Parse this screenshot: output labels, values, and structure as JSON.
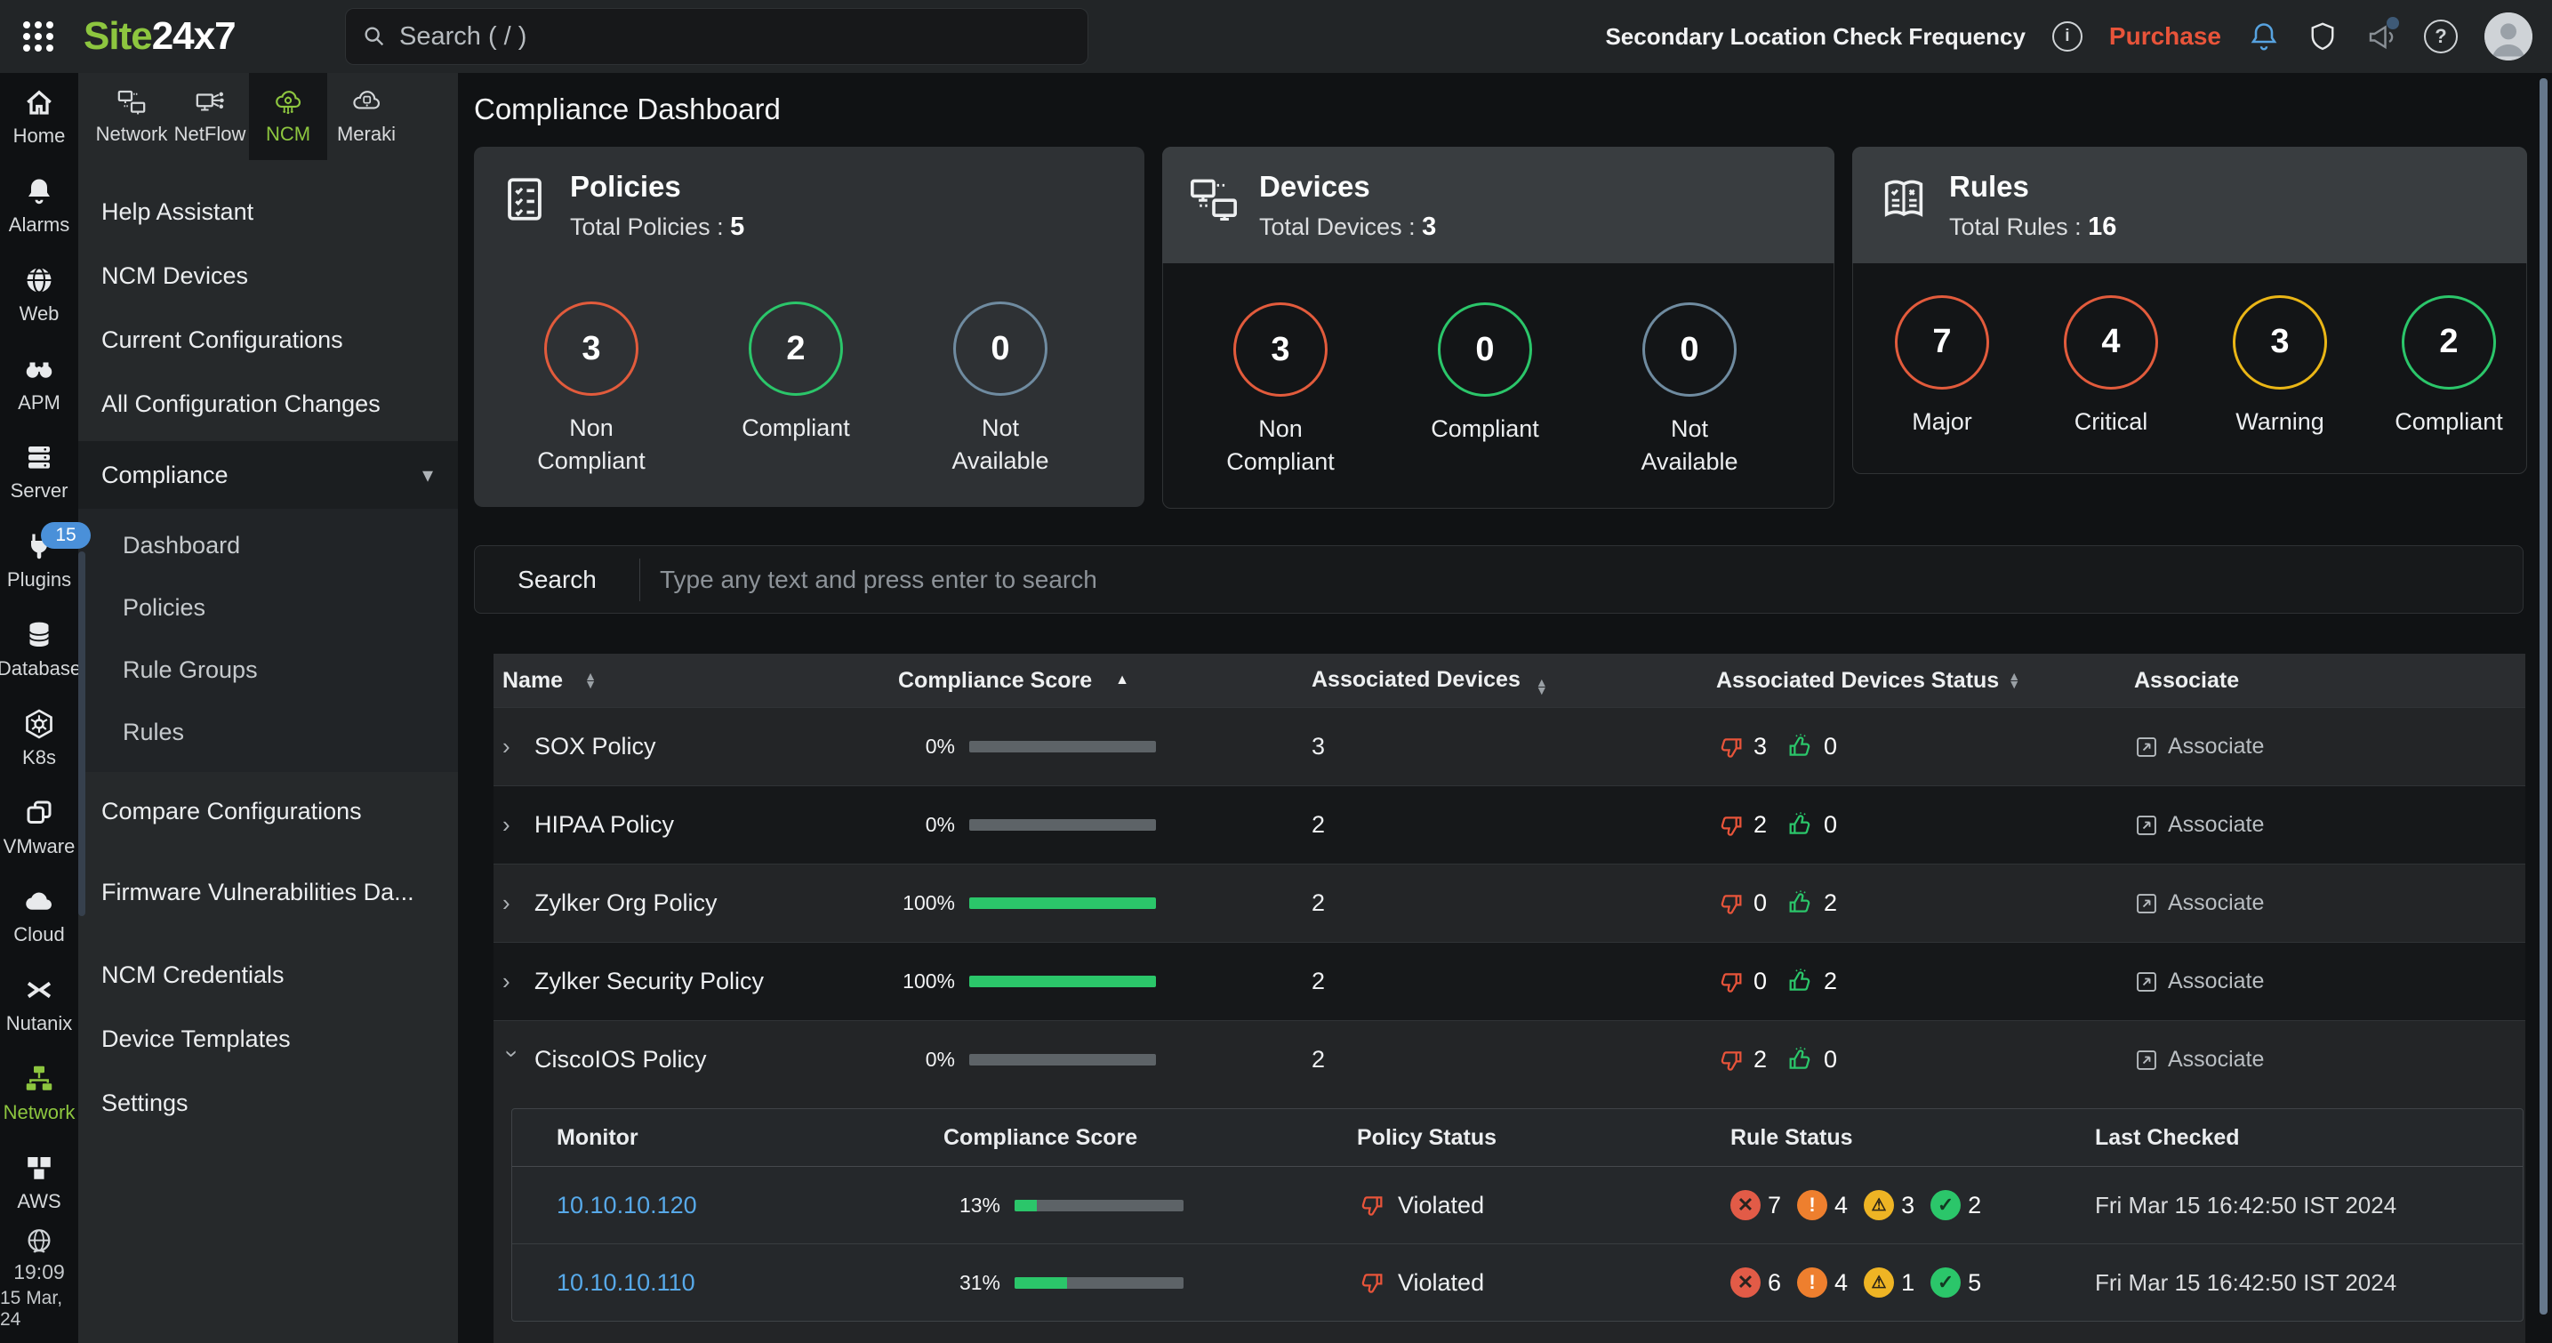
{
  "topbar": {
    "logo_site": "Site",
    "logo_24x7": "24x7",
    "search_placeholder": "Search ( / )",
    "check_frequency_label": "Secondary Location Check Frequency",
    "purchase_label": "Purchase"
  },
  "glyphs": {
    "sort_up": "▲",
    "sort_down": "▼",
    "chevron": "›",
    "caret_down": "▾",
    "info": "i",
    "question": "?",
    "cross": "✕",
    "exclaim": "!",
    "warning": "⚠",
    "check": "✓",
    "meraki_m": "M"
  },
  "rail": {
    "items": [
      {
        "label": "Home"
      },
      {
        "label": "Alarms"
      },
      {
        "label": "Web"
      },
      {
        "label": "APM"
      },
      {
        "label": "Server"
      },
      {
        "label": "Plugins",
        "badge": "15"
      },
      {
        "label": "Database"
      },
      {
        "label": "K8s"
      },
      {
        "label": "VMware"
      },
      {
        "label": "Cloud"
      },
      {
        "label": "Nutanix"
      },
      {
        "label": "Network",
        "active": true
      },
      {
        "label": "AWS"
      }
    ],
    "time": "19:09",
    "date": "15 Mar, 24"
  },
  "tabs": [
    {
      "label": "Network"
    },
    {
      "label": "NetFlow"
    },
    {
      "label": "NCM",
      "active": true
    },
    {
      "label": "Meraki"
    }
  ],
  "sidebar": {
    "items": [
      {
        "label": "Help Assistant"
      },
      {
        "label": "NCM Devices"
      },
      {
        "label": "Current Configurations"
      },
      {
        "label": "All Configuration Changes"
      },
      {
        "label": "Compliance"
      },
      {
        "label": "Dashboard"
      },
      {
        "label": "Policies"
      },
      {
        "label": "Rule Groups"
      },
      {
        "label": "Rules"
      },
      {
        "label": "Compare Configurations"
      },
      {
        "label": "Firmware Vulnerabilities Da..."
      },
      {
        "label": "NCM Credentials"
      },
      {
        "label": "Device Templates"
      },
      {
        "label": "Settings"
      }
    ]
  },
  "page": {
    "title": "Compliance Dashboard"
  },
  "cards": {
    "policies": {
      "title": "Policies",
      "total_label": "Total Policies :",
      "total": "5",
      "stats": [
        {
          "value": "3",
          "label": "Non Compliant",
          "color": "#e25b3c"
        },
        {
          "value": "2",
          "label": "Compliant",
          "color": "#2bc66a"
        },
        {
          "value": "0",
          "label": "Not Available",
          "color": "#6f8ba0"
        }
      ]
    },
    "devices": {
      "title": "Devices",
      "total_label": "Total Devices :",
      "total": "3",
      "stats": [
        {
          "value": "3",
          "label": "Non Compliant",
          "color": "#e25b3c"
        },
        {
          "value": "0",
          "label": "Compliant",
          "color": "#2bc66a"
        },
        {
          "value": "0",
          "label": "Not Available",
          "color": "#6f8ba0"
        }
      ]
    },
    "rules": {
      "title": "Rules",
      "total_label": "Total Rules :",
      "total": "16",
      "stats": [
        {
          "value": "7",
          "label": "Major",
          "color": "#e25b3c"
        },
        {
          "value": "4",
          "label": "Critical",
          "color": "#e25b3c"
        },
        {
          "value": "3",
          "label": "Warning",
          "color": "#eab616"
        },
        {
          "value": "2",
          "label": "Compliant",
          "color": "#2bc66a"
        }
      ]
    }
  },
  "search": {
    "label": "Search",
    "placeholder": "Type any text and press enter to search"
  },
  "table": {
    "columns": [
      {
        "label": "Name"
      },
      {
        "label": "Compliance Score"
      },
      {
        "label": "Associated Devices"
      },
      {
        "label": "Associated Devices Status"
      },
      {
        "label": "Associate"
      }
    ],
    "rows": [
      {
        "name": "SOX Policy",
        "score": "0%",
        "score_pct": 0,
        "devices": "3",
        "violated": "3",
        "compliant": "0",
        "associate_label": "Associate"
      },
      {
        "name": "HIPAA Policy",
        "score": "0%",
        "score_pct": 0,
        "devices": "2",
        "violated": "2",
        "compliant": "0",
        "associate_label": "Associate"
      },
      {
        "name": "Zylker Org Policy",
        "score": "100%",
        "score_pct": 100,
        "devices": "2",
        "violated": "0",
        "compliant": "2",
        "associate_label": "Associate"
      },
      {
        "name": "Zylker Security Policy",
        "score": "100%",
        "score_pct": 100,
        "devices": "2",
        "violated": "0",
        "compliant": "2",
        "associate_label": "Associate"
      },
      {
        "name": "CiscoIOS Policy",
        "score": "0%",
        "score_pct": 0,
        "devices": "2",
        "violated": "2",
        "compliant": "0",
        "associate_label": "Associate",
        "expanded": true
      }
    ]
  },
  "subtable": {
    "columns": [
      {
        "label": "Monitor"
      },
      {
        "label": "Compliance Score"
      },
      {
        "label": "Policy Status"
      },
      {
        "label": "Rule Status"
      },
      {
        "label": "Last Checked"
      }
    ],
    "rows": [
      {
        "monitor": "10.10.10.120",
        "score": "13%",
        "score_pct": 13,
        "policy_status": "Violated",
        "rule_error": "7",
        "rule_critical": "4",
        "rule_warning": "3",
        "rule_ok": "2",
        "last_checked": "Fri Mar 15 16:42:50 IST 2024"
      },
      {
        "monitor": "10.10.10.110",
        "score": "31%",
        "score_pct": 31,
        "policy_status": "Violated",
        "rule_error": "6",
        "rule_critical": "4",
        "rule_warning": "1",
        "rule_ok": "5",
        "last_checked": "Fri Mar 15 16:42:50 IST 2024"
      }
    ]
  },
  "colors": {
    "brand_green": "#8dc63f",
    "compliant_green": "#2bc66a",
    "non_compliant_red": "#e25b3c",
    "not_available_slate": "#6f8ba0",
    "warning_yellow": "#eab616",
    "purchase_orange": "#e8543a",
    "link_blue": "#57a9e9",
    "badge_blue": "#4a90d9"
  }
}
